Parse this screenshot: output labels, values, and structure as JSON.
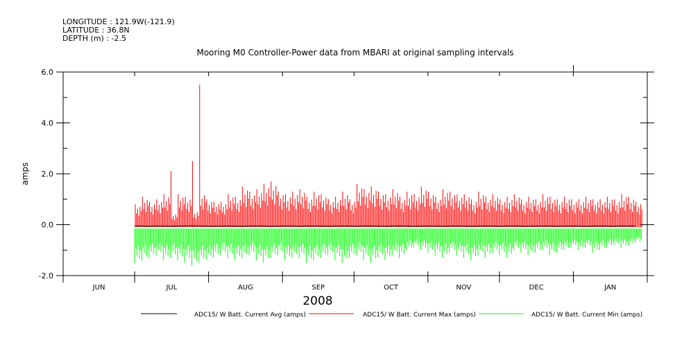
{
  "header": {
    "longitude": "LONGITUDE : 121.9W(-121.9)",
    "latitude": "LATITUDE : 36.8N",
    "depth": "DEPTH (m) : -2.5"
  },
  "chart_data": {
    "type": "line",
    "title": "Mooring M0 Controller-Power data from MBARI at original sampling intervals",
    "ylabel": "amps",
    "xlabel": "2008",
    "ylim": [
      -2.0,
      6.0
    ],
    "yticks": [
      "6.0",
      "4.0",
      "2.0",
      "0.0",
      "-2.0"
    ],
    "xlim_days_from_jun1": [
      0,
      245
    ],
    "month_labels": [
      "JUN",
      "JUL",
      "AUG",
      "SEP",
      "OCT",
      "NOV",
      "DEC",
      "JAN"
    ],
    "month_start_days": [
      0,
      30,
      61,
      92,
      122,
      153,
      183,
      214,
      245
    ],
    "start_day": 30,
    "step_days": 3,
    "series": [
      {
        "name": "ADC15/ W Batt. Current Avg (amps)",
        "color": "#000000",
        "values": [
          -0.05,
          -0.05,
          -0.06,
          -0.05,
          -0.05,
          -0.06,
          -0.05,
          -0.05,
          -0.04,
          -0.05,
          -0.05,
          -0.06,
          -0.05,
          -0.05,
          -0.05,
          -0.06,
          -0.05,
          -0.05,
          -0.05,
          -0.06,
          -0.05,
          -0.05,
          -0.05,
          -0.06,
          -0.05,
          -0.05,
          -0.05,
          -0.06,
          -0.05,
          -0.05,
          -0.05,
          -0.06,
          -0.05,
          -0.05,
          -0.05,
          -0.06,
          -0.05,
          -0.05,
          -0.05,
          -0.06,
          -0.05,
          -0.05,
          -0.05,
          -0.06,
          -0.05,
          -0.05,
          -0.05,
          -0.06,
          -0.05,
          -0.05,
          -0.05,
          -0.06,
          -0.05,
          -0.05,
          -0.05,
          -0.06,
          -0.05,
          -0.05,
          -0.05,
          -0.06,
          -0.05,
          -0.05,
          -0.05,
          -0.06,
          -0.05,
          -0.05,
          -0.05,
          -0.06,
          -0.05,
          -0.05,
          -0.05
        ]
      },
      {
        "name": "ADC15/ W Batt. Current Max (amps)",
        "color": "#ff0000",
        "values": [
          0.8,
          1.1,
          0.9,
          1.0,
          1.2,
          2.1,
          1.2,
          1.1,
          2.5,
          5.5,
          1.0,
          0.9,
          0.9,
          1.2,
          1.1,
          1.5,
          1.3,
          1.4,
          1.6,
          1.7,
          1.3,
          1.2,
          1.3,
          1.4,
          1.1,
          1.3,
          1.2,
          1.0,
          1.1,
          1.3,
          1.0,
          1.6,
          1.4,
          1.5,
          1.3,
          1.2,
          1.4,
          1.1,
          1.3,
          1.2,
          1.5,
          1.3,
          1.1,
          1.4,
          1.3,
          1.2,
          1.2,
          1.0,
          1.3,
          1.1,
          1.2,
          1.0,
          1.1,
          1.2,
          1.0,
          1.1,
          1.0,
          1.2,
          1.1,
          1.0,
          1.1,
          1.0,
          1.0,
          1.1,
          1.0,
          1.0,
          1.1,
          1.0,
          1.2,
          1.1,
          0.9
        ]
      },
      {
        "name": "ADC15/ W Batt. Current Min (amps)",
        "color": "#00ff00",
        "values": [
          -1.5,
          -1.4,
          -1.3,
          -1.2,
          -1.4,
          -1.3,
          -1.4,
          -1.5,
          -1.6,
          -1.5,
          -1.4,
          -1.3,
          -1.2,
          -1.3,
          -1.4,
          -1.3,
          -1.2,
          -1.4,
          -1.5,
          -1.3,
          -1.2,
          -1.4,
          -1.3,
          -1.3,
          -1.5,
          -1.4,
          -1.3,
          -1.2,
          -1.4,
          -1.5,
          -1.3,
          -1.2,
          -1.4,
          -1.5,
          -1.3,
          -1.4,
          -1.2,
          -1.3,
          -1.0,
          -0.9,
          -1.0,
          -1.1,
          -1.2,
          -1.3,
          -1.1,
          -1.2,
          -1.3,
          -1.4,
          -1.2,
          -1.3,
          -1.1,
          -1.2,
          -1.3,
          -1.0,
          -1.1,
          -1.2,
          -1.1,
          -1.0,
          -1.2,
          -1.1,
          -1.0,
          -0.9,
          -1.0,
          -0.9,
          -1.1,
          -1.0,
          -0.9,
          -0.8,
          -0.9,
          -0.8,
          -0.7
        ]
      }
    ],
    "legend": [
      "ADC15/ W Batt. Current Avg (amps)",
      "ADC15/ W Batt. Current Max (amps)",
      "ADC15/ W Batt. Current Min (amps)"
    ],
    "legend_placement": "bottom"
  }
}
